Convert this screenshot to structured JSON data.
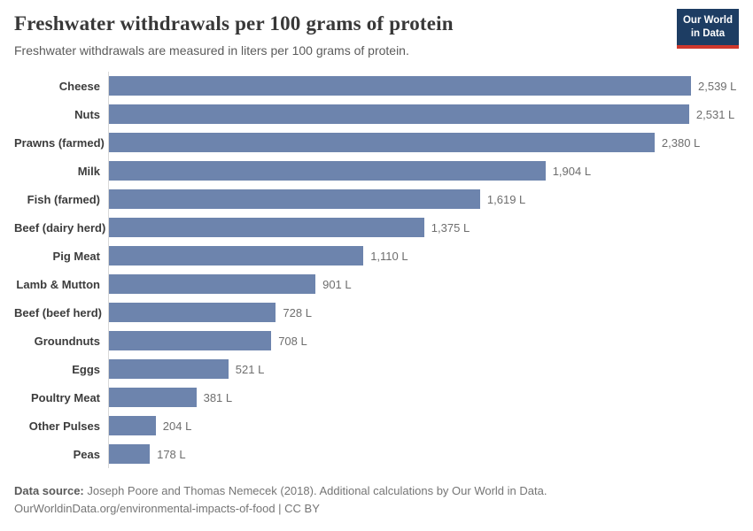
{
  "header": {
    "title": "Freshwater withdrawals per 100 grams of protein",
    "subtitle": "Freshwater withdrawals are measured in liters per 100 grams of protein.",
    "logo": {
      "line1": "Our World",
      "line2": "in Data"
    }
  },
  "chart_data": {
    "type": "bar",
    "orientation": "horizontal",
    "title": "Freshwater withdrawals per 100 grams of protein",
    "subtitle": "Freshwater withdrawals are measured in liters per 100 grams of protein.",
    "xlabel": "",
    "ylabel": "",
    "unit": "L",
    "xlim": [
      0,
      2539
    ],
    "grid": false,
    "legend": "none",
    "bar_color": "#6d84ad",
    "categories": [
      "Cheese",
      "Nuts",
      "Prawns (farmed)",
      "Milk",
      "Fish (farmed)",
      "Beef (dairy herd)",
      "Pig Meat",
      "Lamb & Mutton",
      "Beef (beef herd)",
      "Groundnuts",
      "Eggs",
      "Poultry Meat",
      "Other Pulses",
      "Peas"
    ],
    "values": [
      2539,
      2531,
      2380,
      1904,
      1619,
      1375,
      1110,
      901,
      728,
      708,
      521,
      381,
      204,
      178
    ],
    "value_labels": [
      "2,539 L",
      "2,531 L",
      "2,380 L",
      "1,904 L",
      "1,619 L",
      "1,375 L",
      "1,110 L",
      "901 L",
      "728 L",
      "708 L",
      "521 L",
      "381 L",
      "204 L",
      "178 L"
    ]
  },
  "footer": {
    "source_label": "Data source:",
    "source_text": "Joseph Poore and Thomas Nemecek (2018). Additional calculations by Our World in Data.",
    "url_line": "OurWorldinData.org/environmental-impacts-of-food | CC BY"
  },
  "colors": {
    "bar": "#6d84ad",
    "axis_line": "#d9d9d9",
    "logo_bg": "#1d3d63",
    "logo_accent": "#cf372c",
    "value_text": "#6e6e6e",
    "footer_text": "#757575"
  }
}
